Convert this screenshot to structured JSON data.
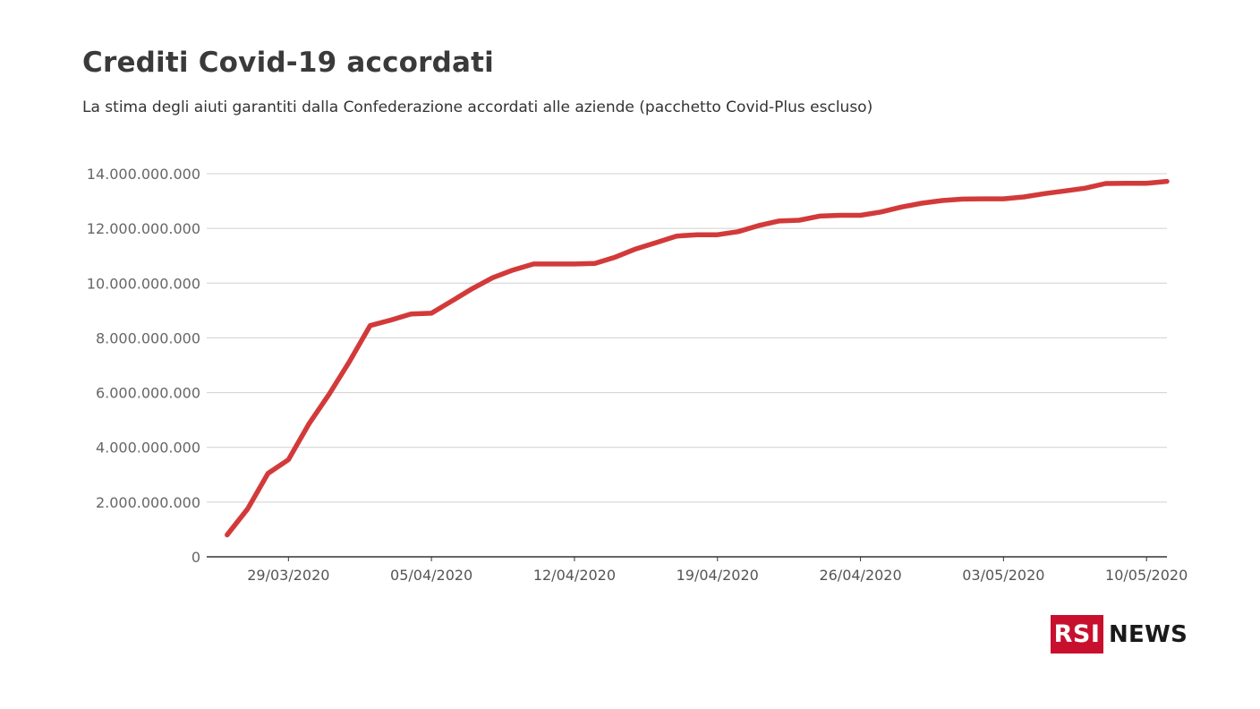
{
  "title": "Crediti Covid-19 accordati",
  "subtitle": "La stima degli aiuti garantiti dalla Confederazione accordati alle aziende (pacchetto Covid-Plus escluso)",
  "brand": {
    "box_text": "RSI",
    "text": "NEWS",
    "color": "#c8102e"
  },
  "chart_data": {
    "type": "line",
    "series_color": "#d23a3a",
    "grid": true,
    "ylim": [
      0,
      14000000000
    ],
    "yticks": [
      {
        "value": 0,
        "label": "0"
      },
      {
        "value": 2000000000,
        "label": "2.000.000.000"
      },
      {
        "value": 4000000000,
        "label": "4.000.000.000"
      },
      {
        "value": 6000000000,
        "label": "6.000.000.000"
      },
      {
        "value": 8000000000,
        "label": "8.000.000.000"
      },
      {
        "value": 10000000000,
        "label": "10.000.000.000"
      },
      {
        "value": 12000000000,
        "label": "12.000.000.000"
      },
      {
        "value": 14000000000,
        "label": "14.000.000.000"
      }
    ],
    "xticks": [
      "29/03/2020",
      "05/04/2020",
      "12/04/2020",
      "19/04/2020",
      "26/04/2020",
      "03/05/2020",
      "10/05/2020"
    ],
    "xtick_dates": [
      "2020-03-29",
      "2020-04-05",
      "2020-04-12",
      "2020-04-19",
      "2020-04-26",
      "2020-05-03",
      "2020-05-10"
    ],
    "xlim": [
      "2020-03-25",
      "2020-05-11"
    ],
    "series": [
      {
        "points": [
          {
            "date": "2020-03-26",
            "value": 800000000
          },
          {
            "date": "2020-03-27",
            "value": 1750000000
          },
          {
            "date": "2020-03-28",
            "value": 3050000000
          },
          {
            "date": "2020-03-29",
            "value": 3550000000
          },
          {
            "date": "2020-03-30",
            "value": 4850000000
          },
          {
            "date": "2020-03-31",
            "value": 5950000000
          },
          {
            "date": "2020-04-01",
            "value": 7150000000
          },
          {
            "date": "2020-04-02",
            "value": 8450000000
          },
          {
            "date": "2020-04-03",
            "value": 8650000000
          },
          {
            "date": "2020-04-04",
            "value": 8870000000
          },
          {
            "date": "2020-04-05",
            "value": 8900000000
          },
          {
            "date": "2020-04-06",
            "value": 9350000000
          },
          {
            "date": "2020-04-07",
            "value": 9800000000
          },
          {
            "date": "2020-04-08",
            "value": 10200000000
          },
          {
            "date": "2020-04-09",
            "value": 10480000000
          },
          {
            "date": "2020-04-10",
            "value": 10700000000
          },
          {
            "date": "2020-04-11",
            "value": 10700000000
          },
          {
            "date": "2020-04-12",
            "value": 10700000000
          },
          {
            "date": "2020-04-13",
            "value": 10720000000
          },
          {
            "date": "2020-04-14",
            "value": 10950000000
          },
          {
            "date": "2020-04-15",
            "value": 11250000000
          },
          {
            "date": "2020-04-16",
            "value": 11480000000
          },
          {
            "date": "2020-04-17",
            "value": 11720000000
          },
          {
            "date": "2020-04-18",
            "value": 11770000000
          },
          {
            "date": "2020-04-19",
            "value": 11770000000
          },
          {
            "date": "2020-04-20",
            "value": 11880000000
          },
          {
            "date": "2020-04-21",
            "value": 12100000000
          },
          {
            "date": "2020-04-22",
            "value": 12270000000
          },
          {
            "date": "2020-04-23",
            "value": 12300000000
          },
          {
            "date": "2020-04-24",
            "value": 12450000000
          },
          {
            "date": "2020-04-25",
            "value": 12480000000
          },
          {
            "date": "2020-04-26",
            "value": 12480000000
          },
          {
            "date": "2020-04-27",
            "value": 12600000000
          },
          {
            "date": "2020-04-28",
            "value": 12780000000
          },
          {
            "date": "2020-04-29",
            "value": 12920000000
          },
          {
            "date": "2020-04-30",
            "value": 13020000000
          },
          {
            "date": "2020-05-01",
            "value": 13070000000
          },
          {
            "date": "2020-05-02",
            "value": 13080000000
          },
          {
            "date": "2020-05-03",
            "value": 13080000000
          },
          {
            "date": "2020-05-04",
            "value": 13150000000
          },
          {
            "date": "2020-05-05",
            "value": 13270000000
          },
          {
            "date": "2020-05-06",
            "value": 13370000000
          },
          {
            "date": "2020-05-07",
            "value": 13470000000
          },
          {
            "date": "2020-05-08",
            "value": 13640000000
          },
          {
            "date": "2020-05-09",
            "value": 13650000000
          },
          {
            "date": "2020-05-10",
            "value": 13650000000
          },
          {
            "date": "2020-05-11",
            "value": 13720000000
          }
        ]
      }
    ]
  }
}
